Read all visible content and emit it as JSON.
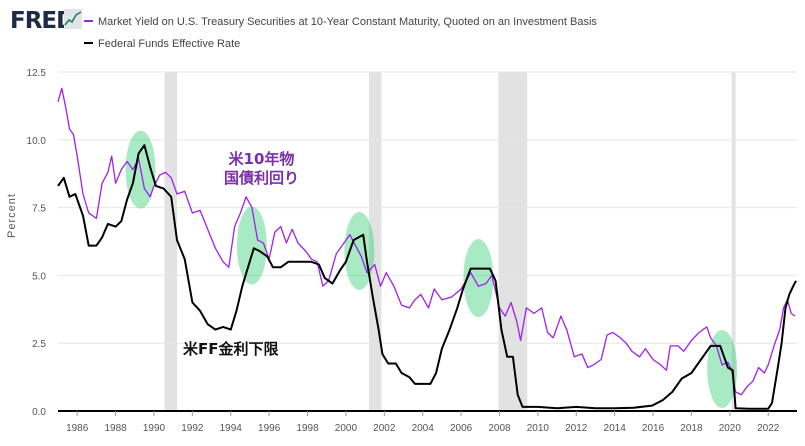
{
  "header": {
    "logo": "FRED",
    "legend": [
      {
        "label": "Market Yield on U.S. Treasury Securities at 10-Year Constant Maturity, Quoted on an Investment Basis",
        "color": "#a020f0"
      },
      {
        "label": "Federal Funds Effective Rate",
        "color": "#000000"
      }
    ]
  },
  "chart_data": {
    "type": "line",
    "ylabel": "Percent",
    "xlim": [
      1985.0,
      2023.5
    ],
    "ylim": [
      0,
      12.5
    ],
    "grid": "horizontal",
    "y_ticks": [
      "0.0",
      "2.5",
      "5.0",
      "7.5",
      "10.0",
      "12.5"
    ],
    "x_ticks": [
      "1986",
      "1988",
      "1990",
      "1992",
      "1994",
      "1996",
      "1998",
      "2000",
      "2002",
      "2004",
      "2006",
      "2008",
      "2010",
      "2012",
      "2014",
      "2016",
      "2018",
      "2020",
      "2022"
    ],
    "recessions": [
      [
        1990.55,
        1991.2
      ],
      [
        2001.2,
        2001.85
      ],
      [
        2007.95,
        2009.45
      ],
      [
        2020.1,
        2020.3
      ]
    ],
    "series": [
      {
        "name": "Market Yield on U.S. Treasury Securities at 10-Year Constant Maturity, Quoted on an Investment Basis",
        "color": "#a020f0",
        "x": [
          1985.0,
          1985.2,
          1985.4,
          1985.6,
          1985.8,
          1986.0,
          1986.3,
          1986.6,
          1987.0,
          1987.3,
          1987.6,
          1987.8,
          1988.0,
          1988.3,
          1988.6,
          1988.9,
          1989.2,
          1989.5,
          1989.8,
          1990.0,
          1990.3,
          1990.6,
          1990.9,
          1991.2,
          1991.6,
          1992.0,
          1992.4,
          1992.8,
          1993.2,
          1993.6,
          1993.9,
          1994.2,
          1994.5,
          1994.8,
          1995.1,
          1995.4,
          1995.7,
          1996.0,
          1996.3,
          1996.6,
          1996.9,
          1997.2,
          1997.5,
          1997.9,
          1998.2,
          1998.5,
          1998.8,
          1999.1,
          1999.5,
          1999.9,
          2000.2,
          2000.5,
          2000.8,
          2001.1,
          2001.5,
          2001.8,
          2002.1,
          2002.5,
          2002.9,
          2003.3,
          2003.6,
          2003.9,
          2004.3,
          2004.6,
          2005.0,
          2005.5,
          2006.0,
          2006.5,
          2006.9,
          2007.3,
          2007.6,
          2008.0,
          2008.3,
          2008.6,
          2008.9,
          2009.1,
          2009.4,
          2009.8,
          2010.2,
          2010.5,
          2010.8,
          2011.2,
          2011.5,
          2011.9,
          2012.3,
          2012.6,
          2012.9,
          2013.3,
          2013.6,
          2013.9,
          2014.3,
          2014.6,
          2014.9,
          2015.3,
          2015.6,
          2016.0,
          2016.4,
          2016.7,
          2016.9,
          2017.3,
          2017.6,
          2018.0,
          2018.4,
          2018.8,
          2019.0,
          2019.3,
          2019.6,
          2019.9,
          2020.1,
          2020.3,
          2020.6,
          2020.9,
          2021.2,
          2021.5,
          2021.8,
          2022.0,
          2022.3,
          2022.6,
          2022.8,
          2023.0,
          2023.2,
          2023.4
        ],
        "values": [
          11.4,
          11.9,
          11.2,
          10.4,
          10.2,
          9.4,
          8.0,
          7.3,
          7.1,
          8.4,
          8.8,
          9.4,
          8.4,
          8.9,
          9.2,
          8.9,
          9.3,
          8.2,
          7.9,
          8.3,
          8.7,
          8.8,
          8.6,
          8.0,
          8.1,
          7.3,
          7.4,
          6.7,
          6.0,
          5.5,
          5.3,
          6.8,
          7.3,
          7.9,
          7.5,
          6.3,
          6.2,
          5.6,
          6.6,
          6.8,
          6.2,
          6.7,
          6.2,
          5.9,
          5.6,
          5.5,
          4.6,
          4.8,
          5.8,
          6.2,
          6.5,
          6.1,
          5.7,
          5.1,
          5.4,
          4.6,
          5.1,
          4.6,
          3.9,
          3.8,
          4.1,
          4.3,
          3.8,
          4.5,
          4.1,
          4.2,
          4.5,
          5.1,
          4.6,
          4.7,
          5.0,
          3.8,
          3.5,
          4.0,
          3.3,
          2.6,
          3.8,
          3.6,
          3.8,
          2.9,
          2.7,
          3.5,
          3.0,
          2.0,
          2.1,
          1.6,
          1.7,
          1.9,
          2.8,
          2.9,
          2.7,
          2.5,
          2.2,
          2.0,
          2.3,
          1.9,
          1.7,
          1.5,
          2.4,
          2.4,
          2.2,
          2.6,
          2.9,
          3.1,
          2.7,
          2.4,
          1.7,
          1.8,
          1.5,
          0.7,
          0.6,
          0.9,
          1.1,
          1.6,
          1.4,
          1.7,
          2.4,
          3.0,
          3.8,
          4.1,
          3.6,
          3.5
        ]
      },
      {
        "name": "Federal Funds Effective Rate",
        "color": "#000000",
        "x": [
          1985.0,
          1985.3,
          1985.6,
          1985.9,
          1986.3,
          1986.6,
          1987.0,
          1987.3,
          1987.6,
          1988.0,
          1988.3,
          1988.6,
          1988.9,
          1989.2,
          1989.5,
          1989.8,
          1990.1,
          1990.5,
          1990.9,
          1991.2,
          1991.6,
          1992.0,
          1992.4,
          1992.8,
          1993.2,
          1993.6,
          1994.0,
          1994.3,
          1994.6,
          1994.9,
          1995.2,
          1995.5,
          1995.9,
          1996.2,
          1996.6,
          1997.0,
          1997.4,
          1997.8,
          1998.2,
          1998.6,
          1998.9,
          1999.3,
          1999.7,
          2000.0,
          2000.4,
          2000.9,
          2001.1,
          2001.4,
          2001.7,
          2001.9,
          2002.2,
          2002.6,
          2002.9,
          2003.3,
          2003.6,
          2004.0,
          2004.4,
          2004.7,
          2005.0,
          2005.4,
          2005.8,
          2006.1,
          2006.5,
          2007.0,
          2007.5,
          2007.8,
          2008.1,
          2008.4,
          2008.7,
          2008.95,
          2009.2,
          2010.0,
          2011.0,
          2012.0,
          2013.0,
          2014.0,
          2015.0,
          2015.95,
          2016.5,
          2017.0,
          2017.5,
          2018.0,
          2018.5,
          2019.0,
          2019.5,
          2019.9,
          2020.15,
          2020.3,
          2021.0,
          2022.0,
          2022.2,
          2022.5,
          2022.7,
          2022.9,
          2023.1,
          2023.3,
          2023.45
        ],
        "values": [
          8.3,
          8.6,
          7.9,
          8.0,
          7.2,
          6.1,
          6.1,
          6.4,
          6.9,
          6.8,
          7.0,
          7.8,
          8.4,
          9.5,
          9.8,
          9.0,
          8.3,
          8.2,
          7.9,
          6.3,
          5.6,
          4.0,
          3.7,
          3.2,
          3.0,
          3.1,
          3.0,
          3.7,
          4.6,
          5.3,
          6.0,
          5.9,
          5.7,
          5.3,
          5.3,
          5.5,
          5.5,
          5.5,
          5.5,
          5.4,
          4.9,
          4.7,
          5.2,
          5.5,
          6.3,
          6.5,
          5.5,
          4.2,
          3.0,
          2.1,
          1.75,
          1.75,
          1.4,
          1.25,
          1.0,
          1.0,
          1.0,
          1.4,
          2.3,
          3.0,
          3.8,
          4.5,
          5.25,
          5.25,
          5.25,
          4.8,
          3.0,
          2.0,
          2.0,
          0.6,
          0.15,
          0.15,
          0.1,
          0.15,
          0.1,
          0.1,
          0.12,
          0.2,
          0.4,
          0.7,
          1.2,
          1.4,
          1.9,
          2.4,
          2.4,
          1.6,
          1.5,
          0.1,
          0.08,
          0.08,
          0.3,
          1.6,
          2.5,
          3.8,
          4.3,
          4.6,
          4.8
        ]
      }
    ],
    "annotations": [
      {
        "text": "米10年物\n国債利回り",
        "color": "#7b2fa8",
        "x": 1995.6,
        "y": 9.1
      },
      {
        "text": "米FF金利下限",
        "color": "#111111",
        "x": 1994.0,
        "y": 2.1
      }
    ],
    "highlights": [
      {
        "x": 1989.3,
        "y": 8.9
      },
      {
        "x": 1995.1,
        "y": 6.1
      },
      {
        "x": 2000.7,
        "y": 5.9
      },
      {
        "x": 2006.9,
        "y": 4.9
      },
      {
        "x": 2019.6,
        "y": 1.55
      }
    ],
    "highlight_color": "#2ecc71"
  }
}
